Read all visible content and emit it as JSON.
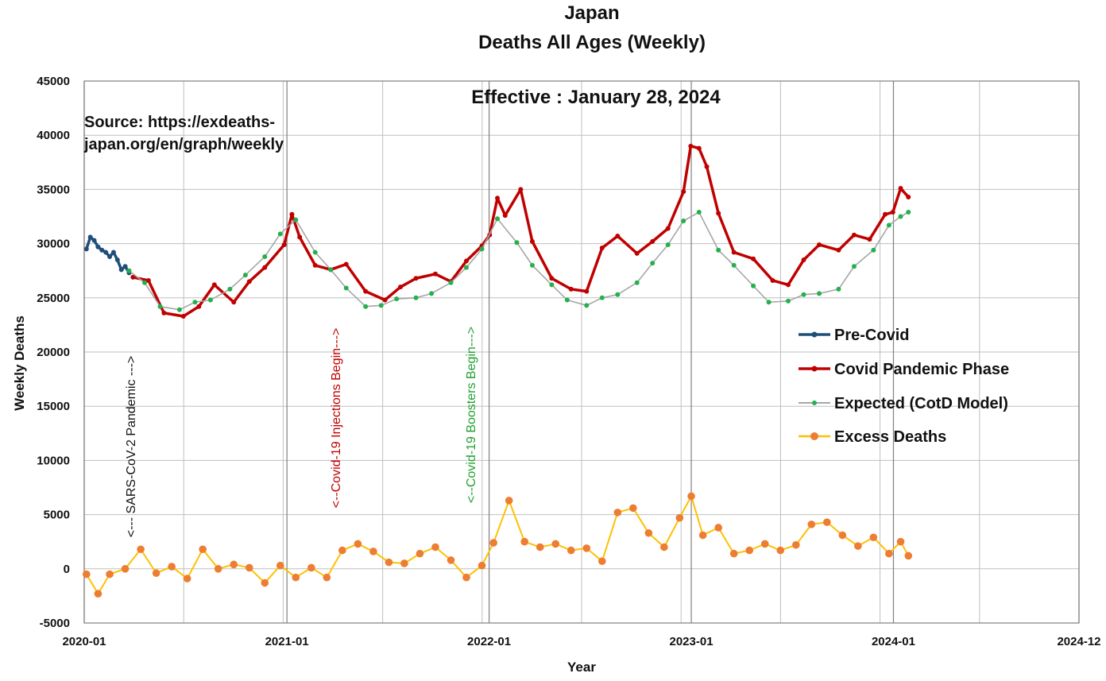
{
  "chart_data": {
    "type": "line",
    "title": "Japan",
    "subtitle": "Deaths All Ages (Weekly)",
    "xlabel": "Year",
    "ylabel": "Weekly Deaths",
    "ylim": [
      -5000,
      45000
    ],
    "xlim": [
      "2020-01",
      "2024-12"
    ],
    "y_ticks": [
      45000,
      40000,
      35000,
      30000,
      25000,
      20000,
      15000,
      10000,
      5000,
      0,
      -5000
    ],
    "x_ticks": [
      "2020-01",
      "2021-01",
      "2022-01",
      "2023-01",
      "2024-01",
      "2024-12"
    ],
    "grid": true,
    "legend_position": "right",
    "annotations": {
      "effective": "Effective : January 28, 2024",
      "source_line1": "Source: https://exdeaths-",
      "source_line2": "japan.org/en/graph/weekly",
      "pandemic": "<--- SARS-CoV-2 Pandemic --->",
      "injections": "<--Covid-19 Injections Begin--->",
      "boosters": "<--Covid-19 Boosters Begin--->"
    },
    "colors": {
      "precovid": "#1f4e79",
      "covid": "#c00000",
      "expected_line": "#a6a6a6",
      "expected_marker": "#22b14c",
      "excess_line": "#ffc000",
      "excess_marker": "#ed7d31",
      "pandemic_label": "#111111",
      "injections_label": "#c00000",
      "boosters_label": "#22a030"
    },
    "series": [
      {
        "name": "Pre-Covid",
        "x": [
          "2020-01-05",
          "2020-01-12",
          "2020-01-19",
          "2020-01-26",
          "2020-02-02",
          "2020-02-09",
          "2020-02-16",
          "2020-02-23",
          "2020-03-01",
          "2020-03-08",
          "2020-03-15",
          "2020-03-22"
        ],
        "values": [
          29500,
          30600,
          30300,
          29700,
          29400,
          29200,
          28800,
          29200,
          28500,
          27600,
          27900,
          27300
        ]
      },
      {
        "name": "Covid Pandemic Phase",
        "x": [
          "2020-03-29",
          "2020-04-26",
          "2020-05-24",
          "2020-06-28",
          "2020-07-26",
          "2020-08-23",
          "2020-09-27",
          "2020-10-25",
          "2020-11-22",
          "2020-12-27",
          "2021-01-10",
          "2021-01-24",
          "2021-02-21",
          "2021-03-21",
          "2021-04-18",
          "2021-05-23",
          "2021-06-27",
          "2021-07-25",
          "2021-08-22",
          "2021-09-26",
          "2021-10-24",
          "2021-11-21",
          "2021-12-19",
          "2022-01-02",
          "2022-01-16",
          "2022-01-30",
          "2022-02-27",
          "2022-03-20",
          "2022-04-24",
          "2022-05-29",
          "2022-06-26",
          "2022-07-24",
          "2022-08-21",
          "2022-09-25",
          "2022-10-23",
          "2022-11-20",
          "2022-12-18",
          "2022-12-31",
          "2023-01-15",
          "2023-01-29",
          "2023-02-19",
          "2023-03-19",
          "2023-04-23",
          "2023-05-28",
          "2023-06-25",
          "2023-07-23",
          "2023-08-20",
          "2023-09-24",
          "2023-10-22",
          "2023-11-19",
          "2023-12-17",
          "2023-12-31",
          "2024-01-14",
          "2024-01-28"
        ],
        "values": [
          26900,
          26600,
          23600,
          23300,
          24200,
          26200,
          24600,
          26500,
          27800,
          29900,
          32700,
          30600,
          28000,
          27600,
          28100,
          25600,
          24800,
          26000,
          26800,
          27200,
          26500,
          28400,
          29800,
          30800,
          34200,
          32600,
          35000,
          30200,
          26800,
          25800,
          25600,
          29600,
          30700,
          29100,
          30200,
          31400,
          34800,
          39000,
          38800,
          37100,
          32800,
          29200,
          28600,
          26600,
          26200,
          28500,
          29900,
          29400,
          30800,
          30400,
          32700,
          32900,
          35100,
          34300
        ]
      },
      {
        "name": "Expected (CotD Model)",
        "x": [
          "2020-03-22",
          "2020-04-19",
          "2020-05-17",
          "2020-06-21",
          "2020-07-19",
          "2020-08-16",
          "2020-09-20",
          "2020-10-18",
          "2020-11-22",
          "2020-12-20",
          "2021-01-17",
          "2021-02-21",
          "2021-03-21",
          "2021-04-18",
          "2021-05-23",
          "2021-06-20",
          "2021-07-18",
          "2021-08-22",
          "2021-09-19",
          "2021-10-24",
          "2021-11-21",
          "2021-12-19",
          "2022-01-16",
          "2022-02-20",
          "2022-03-20",
          "2022-04-24",
          "2022-05-22",
          "2022-06-26",
          "2022-07-24",
          "2022-08-21",
          "2022-09-25",
          "2022-10-23",
          "2022-11-20",
          "2022-12-18",
          "2023-01-15",
          "2023-02-19",
          "2023-03-19",
          "2023-04-23",
          "2023-05-21",
          "2023-06-25",
          "2023-07-23",
          "2023-08-20",
          "2023-09-24",
          "2023-10-22",
          "2023-11-26",
          "2023-12-24",
          "2024-01-14",
          "2024-01-28"
        ],
        "values": [
          27500,
          26400,
          24200,
          23900,
          24600,
          24800,
          25800,
          27100,
          28800,
          30900,
          32200,
          29200,
          27600,
          25900,
          24200,
          24300,
          24900,
          25000,
          25400,
          26400,
          27800,
          29500,
          32300,
          30100,
          28000,
          26200,
          24800,
          24300,
          25000,
          25300,
          26400,
          28200,
          29900,
          32100,
          32900,
          29400,
          28000,
          26100,
          24600,
          24700,
          25300,
          25400,
          25800,
          27900,
          29400,
          31700,
          32500,
          32900
        ]
      },
      {
        "name": "Excess Deaths",
        "x": [
          "2020-01-05",
          "2020-01-26",
          "2020-02-16",
          "2020-03-15",
          "2020-04-12",
          "2020-05-10",
          "2020-06-07",
          "2020-07-05",
          "2020-08-02",
          "2020-08-30",
          "2020-09-27",
          "2020-10-25",
          "2020-11-22",
          "2020-12-20",
          "2021-01-17",
          "2021-02-14",
          "2021-03-14",
          "2021-04-11",
          "2021-05-09",
          "2021-06-06",
          "2021-07-04",
          "2021-08-01",
          "2021-08-29",
          "2021-09-26",
          "2021-10-24",
          "2021-11-21",
          "2021-12-19",
          "2022-01-09",
          "2022-02-06",
          "2022-03-06",
          "2022-04-03",
          "2022-05-01",
          "2022-05-29",
          "2022-06-26",
          "2022-07-24",
          "2022-08-21",
          "2022-09-18",
          "2022-10-16",
          "2022-11-13",
          "2022-12-11",
          "2023-01-01",
          "2023-01-22",
          "2023-02-19",
          "2023-03-19",
          "2023-04-16",
          "2023-05-14",
          "2023-06-11",
          "2023-07-09",
          "2023-08-06",
          "2023-09-03",
          "2023-10-01",
          "2023-10-29",
          "2023-11-26",
          "2023-12-24",
          "2024-01-14",
          "2024-01-28"
        ],
        "values": [
          -500,
          -2300,
          -500,
          0,
          1800,
          -400,
          200,
          -900,
          1800,
          0,
          400,
          100,
          -1300,
          300,
          -800,
          100,
          -800,
          1700,
          2300,
          1600,
          600,
          500,
          1400,
          2000,
          800,
          -800,
          300,
          2400,
          6300,
          2500,
          2000,
          2300,
          1700,
          1900,
          700,
          5200,
          5600,
          3300,
          2000,
          4700,
          6700,
          3100,
          3800,
          1400,
          1700,
          2300,
          1700,
          2200,
          4100,
          4300,
          3100,
          2100,
          2900,
          1400,
          2500,
          1200
        ]
      }
    ]
  }
}
